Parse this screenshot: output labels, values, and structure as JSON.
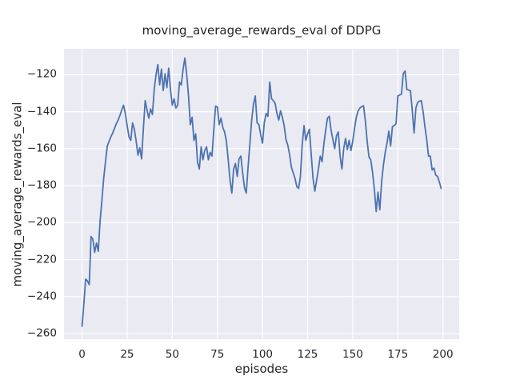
{
  "chart_data": {
    "type": "line",
    "title": "moving_average_rewards_eval of DDPG",
    "xlabel": "episodes",
    "ylabel": "moving_average_rewards_eval",
    "legend": "none",
    "grid": true,
    "plot_bg_color": "#eaeaf2",
    "grid_color": "#ffffff",
    "text_color": "#262626",
    "xlim": [
      -10,
      209
    ],
    "ylim": [
      -263,
      -106
    ],
    "x_ticks": [
      0,
      25,
      50,
      75,
      100,
      125,
      150,
      175,
      200
    ],
    "y_ticks": [
      -120,
      -140,
      -160,
      -180,
      -200,
      -220,
      -240,
      -260
    ],
    "series": [
      {
        "name": "moving_average_rewards_eval",
        "color": "#4c72b0",
        "x_start": 0,
        "x_step": 1,
        "values": [
          -256,
          -244,
          -230.5,
          -231.5,
          -233.5,
          -207.5,
          -209,
          -216,
          -211,
          -215.5,
          -199,
          -188,
          -176,
          -167,
          -158.5,
          -156,
          -153.5,
          -151.5,
          -149,
          -146.5,
          -144.5,
          -142,
          -139,
          -136.5,
          -141,
          -147.5,
          -153.5,
          -155.5,
          -146,
          -149.5,
          -156,
          -163.5,
          -159.5,
          -165.5,
          -149,
          -134,
          -139,
          -143.5,
          -138.5,
          -141.5,
          -128,
          -120,
          -114.5,
          -125.5,
          -117,
          -128.5,
          -119.5,
          -127,
          -116.5,
          -128,
          -136.5,
          -133,
          -138,
          -136.5,
          -124,
          -125.5,
          -117,
          -111,
          -120,
          -131.5,
          -147,
          -143,
          -155.5,
          -152,
          -167.5,
          -171,
          -159,
          -166,
          -161,
          -159,
          -166,
          -162,
          -164,
          -150,
          -137,
          -137.5,
          -147,
          -143.5,
          -148.5,
          -151,
          -156,
          -166,
          -177,
          -184,
          -171,
          -168,
          -175,
          -165.5,
          -164,
          -173,
          -181,
          -184,
          -170,
          -157.5,
          -144.5,
          -136,
          -131.5,
          -146,
          -147,
          -152.5,
          -157,
          -146,
          -141,
          -142.5,
          -124,
          -133,
          -134,
          -135.5,
          -141,
          -144.5,
          -139.5,
          -143,
          -147.5,
          -155,
          -158,
          -163,
          -170,
          -173,
          -176,
          -180.5,
          -181.5,
          -175,
          -158,
          -147.5,
          -155.5,
          -152,
          -149.5,
          -163,
          -176,
          -183,
          -177,
          -171,
          -164,
          -167,
          -157.5,
          -150,
          -143.5,
          -142.5,
          -150,
          -155,
          -160,
          -153,
          -151,
          -164,
          -171,
          -160,
          -154.5,
          -160.5,
          -155.5,
          -161,
          -156,
          -149,
          -143,
          -139.5,
          -138,
          -137.3,
          -136.8,
          -145,
          -156,
          -164.5,
          -166,
          -173,
          -182,
          -194,
          -183.5,
          -193,
          -178,
          -169,
          -162,
          -157,
          -150.5,
          -158.5,
          -148,
          -147.5,
          -146.5,
          -131.5,
          -131,
          -130.5,
          -119.5,
          -118,
          -128,
          -128.3,
          -128.7,
          -139.5,
          -151.5,
          -138,
          -135,
          -134.3,
          -134,
          -140,
          -148,
          -155,
          -164,
          -164,
          -171.5,
          -170.5,
          -174.3,
          -175,
          -178,
          -181.5
        ]
      }
    ]
  }
}
